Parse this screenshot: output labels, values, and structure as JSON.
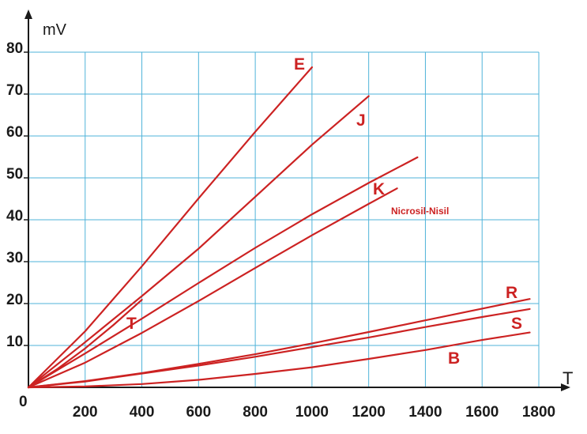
{
  "chart_data": {
    "type": "line",
    "title": "",
    "xlabel": "T",
    "ylabel": "mV",
    "origin_label": "0",
    "xlim": [
      0,
      1800
    ],
    "ylim": [
      0,
      80
    ],
    "x_ticks": [
      200,
      400,
      600,
      800,
      1000,
      1200,
      1400,
      1600,
      1800
    ],
    "y_ticks": [
      10,
      20,
      30,
      40,
      50,
      60,
      70,
      80
    ],
    "grid": true,
    "colors": {
      "series": "#cc2222",
      "grid": "#4fb3d9",
      "axis": "#1a1a1a"
    },
    "series": [
      {
        "name": "E",
        "x": [
          0,
          200,
          400,
          600,
          800,
          1000
        ],
        "y": [
          0,
          13.4,
          28.9,
          45.1,
          61.0,
          76.4
        ]
      },
      {
        "name": "J",
        "x": [
          0,
          200,
          400,
          600,
          800,
          1000,
          1200
        ],
        "y": [
          0,
          10.8,
          21.8,
          33.1,
          45.5,
          57.9,
          69.5
        ]
      },
      {
        "name": "T",
        "x": [
          0,
          100,
          200,
          300,
          400
        ],
        "y": [
          0,
          4.3,
          9.3,
          14.9,
          20.9
        ]
      },
      {
        "name": "K",
        "x": [
          0,
          200,
          400,
          600,
          800,
          1000,
          1200,
          1372
        ],
        "y": [
          0,
          8.1,
          16.4,
          24.9,
          33.3,
          41.3,
          48.8,
          54.9
        ]
      },
      {
        "name": "Nicrosil-Nisil",
        "x": [
          0,
          200,
          400,
          600,
          800,
          1000,
          1200,
          1300
        ],
        "y": [
          0,
          5.9,
          13.0,
          20.6,
          28.5,
          36.3,
          43.8,
          47.5
        ]
      },
      {
        "name": "R",
        "x": [
          0,
          200,
          400,
          600,
          800,
          1000,
          1200,
          1400,
          1600,
          1768
        ],
        "y": [
          0,
          1.5,
          3.4,
          5.6,
          7.9,
          10.5,
          13.2,
          16.0,
          18.8,
          21.1
        ]
      },
      {
        "name": "S",
        "x": [
          0,
          200,
          400,
          600,
          800,
          1000,
          1200,
          1400,
          1600,
          1768
        ],
        "y": [
          0,
          1.4,
          3.3,
          5.2,
          7.3,
          9.6,
          11.9,
          14.4,
          16.8,
          18.7
        ]
      },
      {
        "name": "B",
        "x": [
          0,
          200,
          400,
          600,
          800,
          1000,
          1200,
          1400,
          1600,
          1768
        ],
        "y": [
          0,
          0.2,
          0.8,
          1.8,
          3.2,
          4.8,
          6.8,
          8.9,
          11.3,
          13.1
        ]
      }
    ]
  }
}
